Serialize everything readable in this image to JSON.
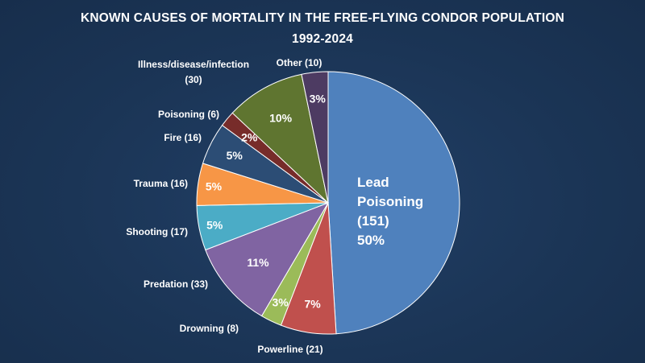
{
  "chart_data": {
    "type": "pie",
    "title": "KNOWN CAUSES OF MORTALITY IN THE FREE-FLYING CONDOR POPULATION",
    "subtitle": "1992-2024",
    "categories": [
      "Lead Poisoning",
      "Powerline",
      "Drowning",
      "Predation",
      "Shooting",
      "Trauma",
      "Fire",
      "Poisoning",
      "Illness/disease/infection",
      "Other"
    ],
    "values": [
      151,
      21,
      8,
      33,
      17,
      16,
      16,
      6,
      30,
      10
    ],
    "percent_labels": [
      "50%",
      "7%",
      "3%",
      "11%",
      "5%",
      "5%",
      "5%",
      "2%",
      "10%",
      "3%"
    ],
    "outside_labels": [
      [
        "Lead",
        "Poisoning",
        "(151)"
      ],
      [
        "Powerline (21)"
      ],
      [
        "Drowning (8)"
      ],
      [
        "Predation (33)"
      ],
      [
        "Shooting (17)"
      ],
      [
        "Trauma (16)"
      ],
      [
        "Fire (16)"
      ],
      [
        "Poisoning (6)"
      ],
      [
        "Illness/disease/infection",
        "(30)"
      ],
      [
        "Other (10)"
      ]
    ],
    "colors": [
      "#4f81bd",
      "#c0504d",
      "#9bbb59",
      "#8064a2",
      "#4bacc6",
      "#f79646",
      "#2c4d75",
      "#772c2a",
      "#5f7530",
      "#4d3b62"
    ],
    "start": "top, clockwise"
  }
}
